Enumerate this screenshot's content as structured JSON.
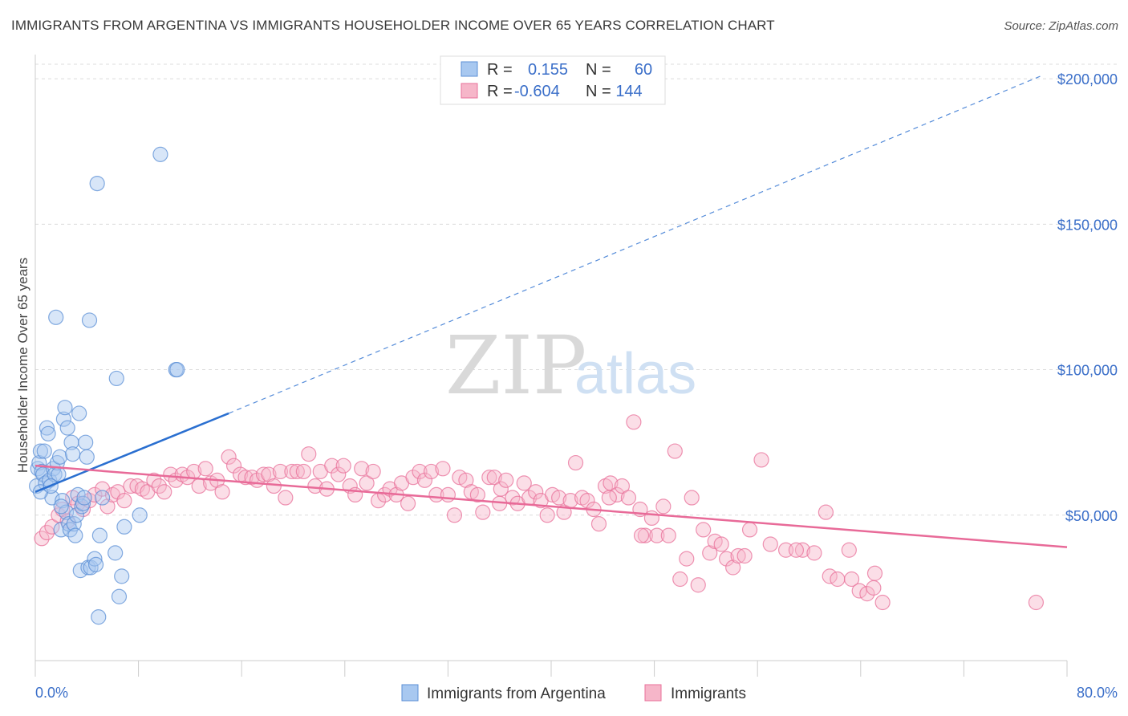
{
  "title": "IMMIGRANTS FROM ARGENTINA VS IMMIGRANTS HOUSEHOLDER INCOME OVER 65 YEARS CORRELATION CHART",
  "source": "Source: ZipAtlas.com",
  "watermark": {
    "zip": "ZIP",
    "atlas": "atlas"
  },
  "legend": {
    "rows": [
      {
        "r_label": "R =",
        "r_value": "0.155",
        "n_label": "N =",
        "n_value": "60",
        "color": "#a8c8f0"
      },
      {
        "r_label": "R =",
        "r_value": "-0.604",
        "n_label": "N =",
        "n_value": "144",
        "color": "#f6b6c9"
      }
    ]
  },
  "bottom_legend": {
    "series1": "Immigrants from Argentina",
    "series2": "Immigrants"
  },
  "chart_data": {
    "type": "scatter",
    "title": "IMMIGRANTS FROM ARGENTINA VS IMMIGRANTS HOUSEHOLDER INCOME OVER 65 YEARS CORRELATION CHART",
    "xlabel": "",
    "ylabel": "Householder Income Over 65 years",
    "xlim": [
      0,
      80
    ],
    "ylim": [
      0,
      205000
    ],
    "x_tick_labels": [
      "0.0%",
      "80.0%"
    ],
    "y_ticks": [
      50000,
      100000,
      150000,
      200000
    ],
    "y_tick_labels": [
      "$50,000",
      "$100,000",
      "$150,000",
      "$200,000"
    ],
    "grid": true,
    "legend_position": "top-center",
    "colors": {
      "blue": "#5b8fd6",
      "blue_fill": "#a8c8f0",
      "pink": "#e8709a",
      "pink_fill": "#f6b6c9",
      "blue_line": "#2a6fd0",
      "pink_line": "#e86a98"
    },
    "series": [
      {
        "name": "Immigrants from Argentina",
        "color": "blue",
        "trend": {
          "x0": 0,
          "y0": 58000,
          "x1": 15,
          "y1": 85000,
          "dashed_to_x": 78,
          "dashed_to_y": 201000
        },
        "points": [
          [
            0.1,
            60000
          ],
          [
            0.2,
            66000
          ],
          [
            0.3,
            68000
          ],
          [
            0.4,
            72000
          ],
          [
            0.5,
            65000
          ],
          [
            0.6,
            64000
          ],
          [
            0.7,
            72000
          ],
          [
            0.8,
            61000
          ],
          [
            0.9,
            80000
          ],
          [
            1.0,
            78000
          ],
          [
            1.1,
            62000
          ],
          [
            1.3,
            56000
          ],
          [
            1.4,
            66000
          ],
          [
            1.5,
            64000
          ],
          [
            1.6,
            118000
          ],
          [
            1.7,
            68000
          ],
          [
            1.8,
            64000
          ],
          [
            1.9,
            70000
          ],
          [
            2.0,
            45000
          ],
          [
            2.1,
            55000
          ],
          [
            2.2,
            83000
          ],
          [
            2.3,
            87000
          ],
          [
            2.4,
            51000
          ],
          [
            2.5,
            80000
          ],
          [
            2.6,
            47000
          ],
          [
            2.7,
            45000
          ],
          [
            2.8,
            75000
          ],
          [
            2.9,
            71000
          ],
          [
            3.0,
            47000
          ],
          [
            3.1,
            43000
          ],
          [
            3.2,
            50000
          ],
          [
            3.3,
            57000
          ],
          [
            3.4,
            85000
          ],
          [
            3.5,
            31000
          ],
          [
            3.6,
            53000
          ],
          [
            3.7,
            54000
          ],
          [
            3.8,
            56000
          ],
          [
            3.9,
            75000
          ],
          [
            4.0,
            70000
          ],
          [
            4.1,
            32000
          ],
          [
            4.2,
            117000
          ],
          [
            4.3,
            32000
          ],
          [
            4.6,
            35000
          ],
          [
            4.7,
            33000
          ],
          [
            4.8,
            164000
          ],
          [
            4.9,
            15000
          ],
          [
            5.0,
            43000
          ],
          [
            5.2,
            56000
          ],
          [
            6.2,
            37000
          ],
          [
            6.3,
            97000
          ],
          [
            6.5,
            22000
          ],
          [
            6.7,
            29000
          ],
          [
            6.9,
            46000
          ],
          [
            8.1,
            50000
          ],
          [
            9.7,
            174000
          ],
          [
            10.9,
            100000
          ],
          [
            11.0,
            100000
          ],
          [
            0.4,
            58000
          ],
          [
            1.2,
            60000
          ],
          [
            2.0,
            53000
          ]
        ]
      },
      {
        "name": "Immigrants",
        "color": "pink",
        "trend": {
          "x0": 0,
          "y0": 67000,
          "x1": 80,
          "y1": 39000
        },
        "points": [
          [
            0.5,
            42000
          ],
          [
            0.9,
            44000
          ],
          [
            1.3,
            46000
          ],
          [
            1.8,
            50000
          ],
          [
            2.1,
            52000
          ],
          [
            2.5,
            48000
          ],
          [
            2.9,
            56000
          ],
          [
            3.3,
            54000
          ],
          [
            3.7,
            52000
          ],
          [
            4.2,
            55000
          ],
          [
            4.6,
            57000
          ],
          [
            5.2,
            59000
          ],
          [
            5.6,
            53000
          ],
          [
            6.0,
            57000
          ],
          [
            6.4,
            58000
          ],
          [
            6.9,
            55000
          ],
          [
            7.4,
            60000
          ],
          [
            7.9,
            60000
          ],
          [
            8.3,
            59000
          ],
          [
            8.7,
            58000
          ],
          [
            9.2,
            62000
          ],
          [
            9.6,
            60000
          ],
          [
            10.0,
            58000
          ],
          [
            10.5,
            64000
          ],
          [
            10.9,
            62000
          ],
          [
            11.4,
            64000
          ],
          [
            11.8,
            63000
          ],
          [
            12.3,
            65000
          ],
          [
            12.7,
            60000
          ],
          [
            13.2,
            66000
          ],
          [
            13.6,
            61000
          ],
          [
            14.1,
            62000
          ],
          [
            14.5,
            58000
          ],
          [
            15.0,
            70000
          ],
          [
            15.4,
            67000
          ],
          [
            15.9,
            64000
          ],
          [
            16.3,
            63000
          ],
          [
            16.8,
            63000
          ],
          [
            17.2,
            62000
          ],
          [
            17.7,
            64000
          ],
          [
            18.1,
            64000
          ],
          [
            18.5,
            60000
          ],
          [
            19.0,
            65000
          ],
          [
            19.4,
            56000
          ],
          [
            19.9,
            65000
          ],
          [
            20.3,
            65000
          ],
          [
            20.8,
            65000
          ],
          [
            21.2,
            71000
          ],
          [
            21.7,
            60000
          ],
          [
            22.1,
            65000
          ],
          [
            22.6,
            59000
          ],
          [
            23.0,
            67000
          ],
          [
            23.5,
            64000
          ],
          [
            23.9,
            67000
          ],
          [
            24.4,
            60000
          ],
          [
            24.8,
            57000
          ],
          [
            25.3,
            66000
          ],
          [
            25.7,
            61000
          ],
          [
            26.2,
            65000
          ],
          [
            26.6,
            55000
          ],
          [
            27.1,
            57000
          ],
          [
            27.5,
            59000
          ],
          [
            28.0,
            57000
          ],
          [
            28.4,
            61000
          ],
          [
            28.9,
            54000
          ],
          [
            29.3,
            63000
          ],
          [
            29.8,
            65000
          ],
          [
            30.2,
            62000
          ],
          [
            30.7,
            65000
          ],
          [
            31.1,
            57000
          ],
          [
            31.6,
            66000
          ],
          [
            32.0,
            57000
          ],
          [
            32.5,
            50000
          ],
          [
            32.9,
            63000
          ],
          [
            33.4,
            62000
          ],
          [
            33.8,
            58000
          ],
          [
            34.3,
            57000
          ],
          [
            34.7,
            51000
          ],
          [
            35.2,
            63000
          ],
          [
            35.6,
            63000
          ],
          [
            36.1,
            59000
          ],
          [
            36.5,
            62000
          ],
          [
            37.0,
            56000
          ],
          [
            37.4,
            54000
          ],
          [
            37.9,
            61000
          ],
          [
            38.3,
            56000
          ],
          [
            38.8,
            58000
          ],
          [
            39.2,
            55000
          ],
          [
            39.7,
            50000
          ],
          [
            40.1,
            57000
          ],
          [
            40.6,
            56000
          ],
          [
            41.0,
            51000
          ],
          [
            41.5,
            55000
          ],
          [
            41.9,
            68000
          ],
          [
            42.4,
            56000
          ],
          [
            42.8,
            55000
          ],
          [
            43.3,
            52000
          ],
          [
            43.7,
            47000
          ],
          [
            44.2,
            60000
          ],
          [
            44.6,
            61000
          ],
          [
            45.1,
            57000
          ],
          [
            45.5,
            60000
          ],
          [
            46.0,
            56000
          ],
          [
            46.4,
            82000
          ],
          [
            46.9,
            52000
          ],
          [
            47.3,
            43000
          ],
          [
            47.8,
            49000
          ],
          [
            48.2,
            43000
          ],
          [
            48.7,
            53000
          ],
          [
            49.1,
            43000
          ],
          [
            49.6,
            72000
          ],
          [
            50.0,
            28000
          ],
          [
            50.5,
            35000
          ],
          [
            50.9,
            56000
          ],
          [
            51.4,
            26000
          ],
          [
            51.8,
            45000
          ],
          [
            52.3,
            37000
          ],
          [
            52.7,
            41000
          ],
          [
            53.2,
            40000
          ],
          [
            53.6,
            35000
          ],
          [
            54.1,
            32000
          ],
          [
            54.5,
            36000
          ],
          [
            55.0,
            36000
          ],
          [
            55.4,
            45000
          ],
          [
            56.3,
            69000
          ],
          [
            57.0,
            40000
          ],
          [
            58.2,
            38000
          ],
          [
            59.5,
            38000
          ],
          [
            60.4,
            37000
          ],
          [
            61.3,
            51000
          ],
          [
            61.6,
            29000
          ],
          [
            62.2,
            28000
          ],
          [
            63.1,
            38000
          ],
          [
            63.3,
            28000
          ],
          [
            63.9,
            24000
          ],
          [
            64.5,
            23000
          ],
          [
            65.1,
            30000
          ],
          [
            65.7,
            20000
          ],
          [
            77.6,
            20000
          ],
          [
            65.0,
            25000
          ],
          [
            59.0,
            38000
          ],
          [
            47.0,
            43000
          ],
          [
            44.5,
            56000
          ],
          [
            36.0,
            54000
          ]
        ]
      }
    ]
  }
}
